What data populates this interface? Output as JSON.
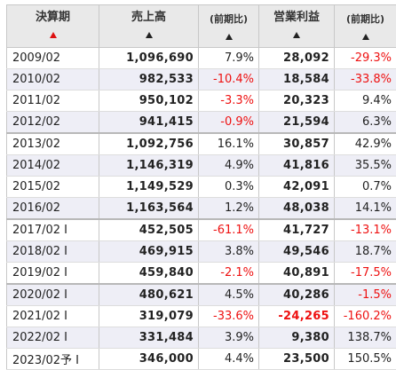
{
  "colors": {
    "negative": "#ee1111",
    "sort_active": "#dd1111",
    "header_bg": "#e9e9e9",
    "row_alt_bg": "#eeeef6"
  },
  "table": {
    "columns": [
      {
        "key": "period",
        "label": "決算期",
        "small": false,
        "sort_icon": "sort-triangle-icon",
        "sort_active": true
      },
      {
        "key": "sales",
        "label": "売上高",
        "small": false,
        "sort_icon": "sort-triangle-icon",
        "sort_active": false
      },
      {
        "key": "sales_chg",
        "label": "(前期比)",
        "small": true,
        "sort_icon": "sort-triangle-icon",
        "sort_active": false
      },
      {
        "key": "op",
        "label": "営業利益",
        "small": false,
        "sort_icon": "sort-triangle-icon",
        "sort_active": false
      },
      {
        "key": "op_chg",
        "label": "(前期比)",
        "small": true,
        "sort_icon": "sort-triangle-icon",
        "sort_active": false
      }
    ],
    "rows": [
      {
        "period": "2009/02",
        "sales": "1,096,690",
        "sales_chg": "7.9%",
        "op": "28,092",
        "op_chg": "-29.3%"
      },
      {
        "period": "2010/02",
        "sales": "982,533",
        "sales_chg": "-10.4%",
        "op": "18,584",
        "op_chg": "-33.8%"
      },
      {
        "period": "2011/02",
        "sales": "950,102",
        "sales_chg": "-3.3%",
        "op": "20,323",
        "op_chg": "9.4%"
      },
      {
        "period": "2012/02",
        "sales": "941,415",
        "sales_chg": "-0.9%",
        "op": "21,594",
        "op_chg": "6.3%"
      },
      {
        "period": "2013/02",
        "sales": "1,092,756",
        "sales_chg": "16.1%",
        "op": "30,857",
        "op_chg": "42.9%",
        "group_start": true
      },
      {
        "period": "2014/02",
        "sales": "1,146,319",
        "sales_chg": "4.9%",
        "op": "41,816",
        "op_chg": "35.5%"
      },
      {
        "period": "2015/02",
        "sales": "1,149,529",
        "sales_chg": "0.3%",
        "op": "42,091",
        "op_chg": "0.7%"
      },
      {
        "period": "2016/02",
        "sales": "1,163,564",
        "sales_chg": "1.2%",
        "op": "48,038",
        "op_chg": "14.1%"
      },
      {
        "period": "2017/02 I",
        "sales": "452,505",
        "sales_chg": "-61.1%",
        "op": "41,727",
        "op_chg": "-13.1%",
        "group_start": true
      },
      {
        "period": "2018/02 I",
        "sales": "469,915",
        "sales_chg": "3.8%",
        "op": "49,546",
        "op_chg": "18.7%"
      },
      {
        "period": "2019/02 I",
        "sales": "459,840",
        "sales_chg": "-2.1%",
        "op": "40,891",
        "op_chg": "-17.5%"
      },
      {
        "period": "2020/02 I",
        "sales": "480,621",
        "sales_chg": "4.5%",
        "op": "40,286",
        "op_chg": "-1.5%",
        "group_start": true
      },
      {
        "period": "2021/02 I",
        "sales": "319,079",
        "sales_chg": "-33.6%",
        "op": "-24,265",
        "op_chg": "-160.2%"
      },
      {
        "period": "2022/02 I",
        "sales": "331,484",
        "sales_chg": "3.9%",
        "op": "9,380",
        "op_chg": "138.7%"
      },
      {
        "period": "2023/02予 I",
        "sales": "346,000",
        "sales_chg": "4.4%",
        "op": "23,500",
        "op_chg": "150.5%"
      }
    ]
  }
}
